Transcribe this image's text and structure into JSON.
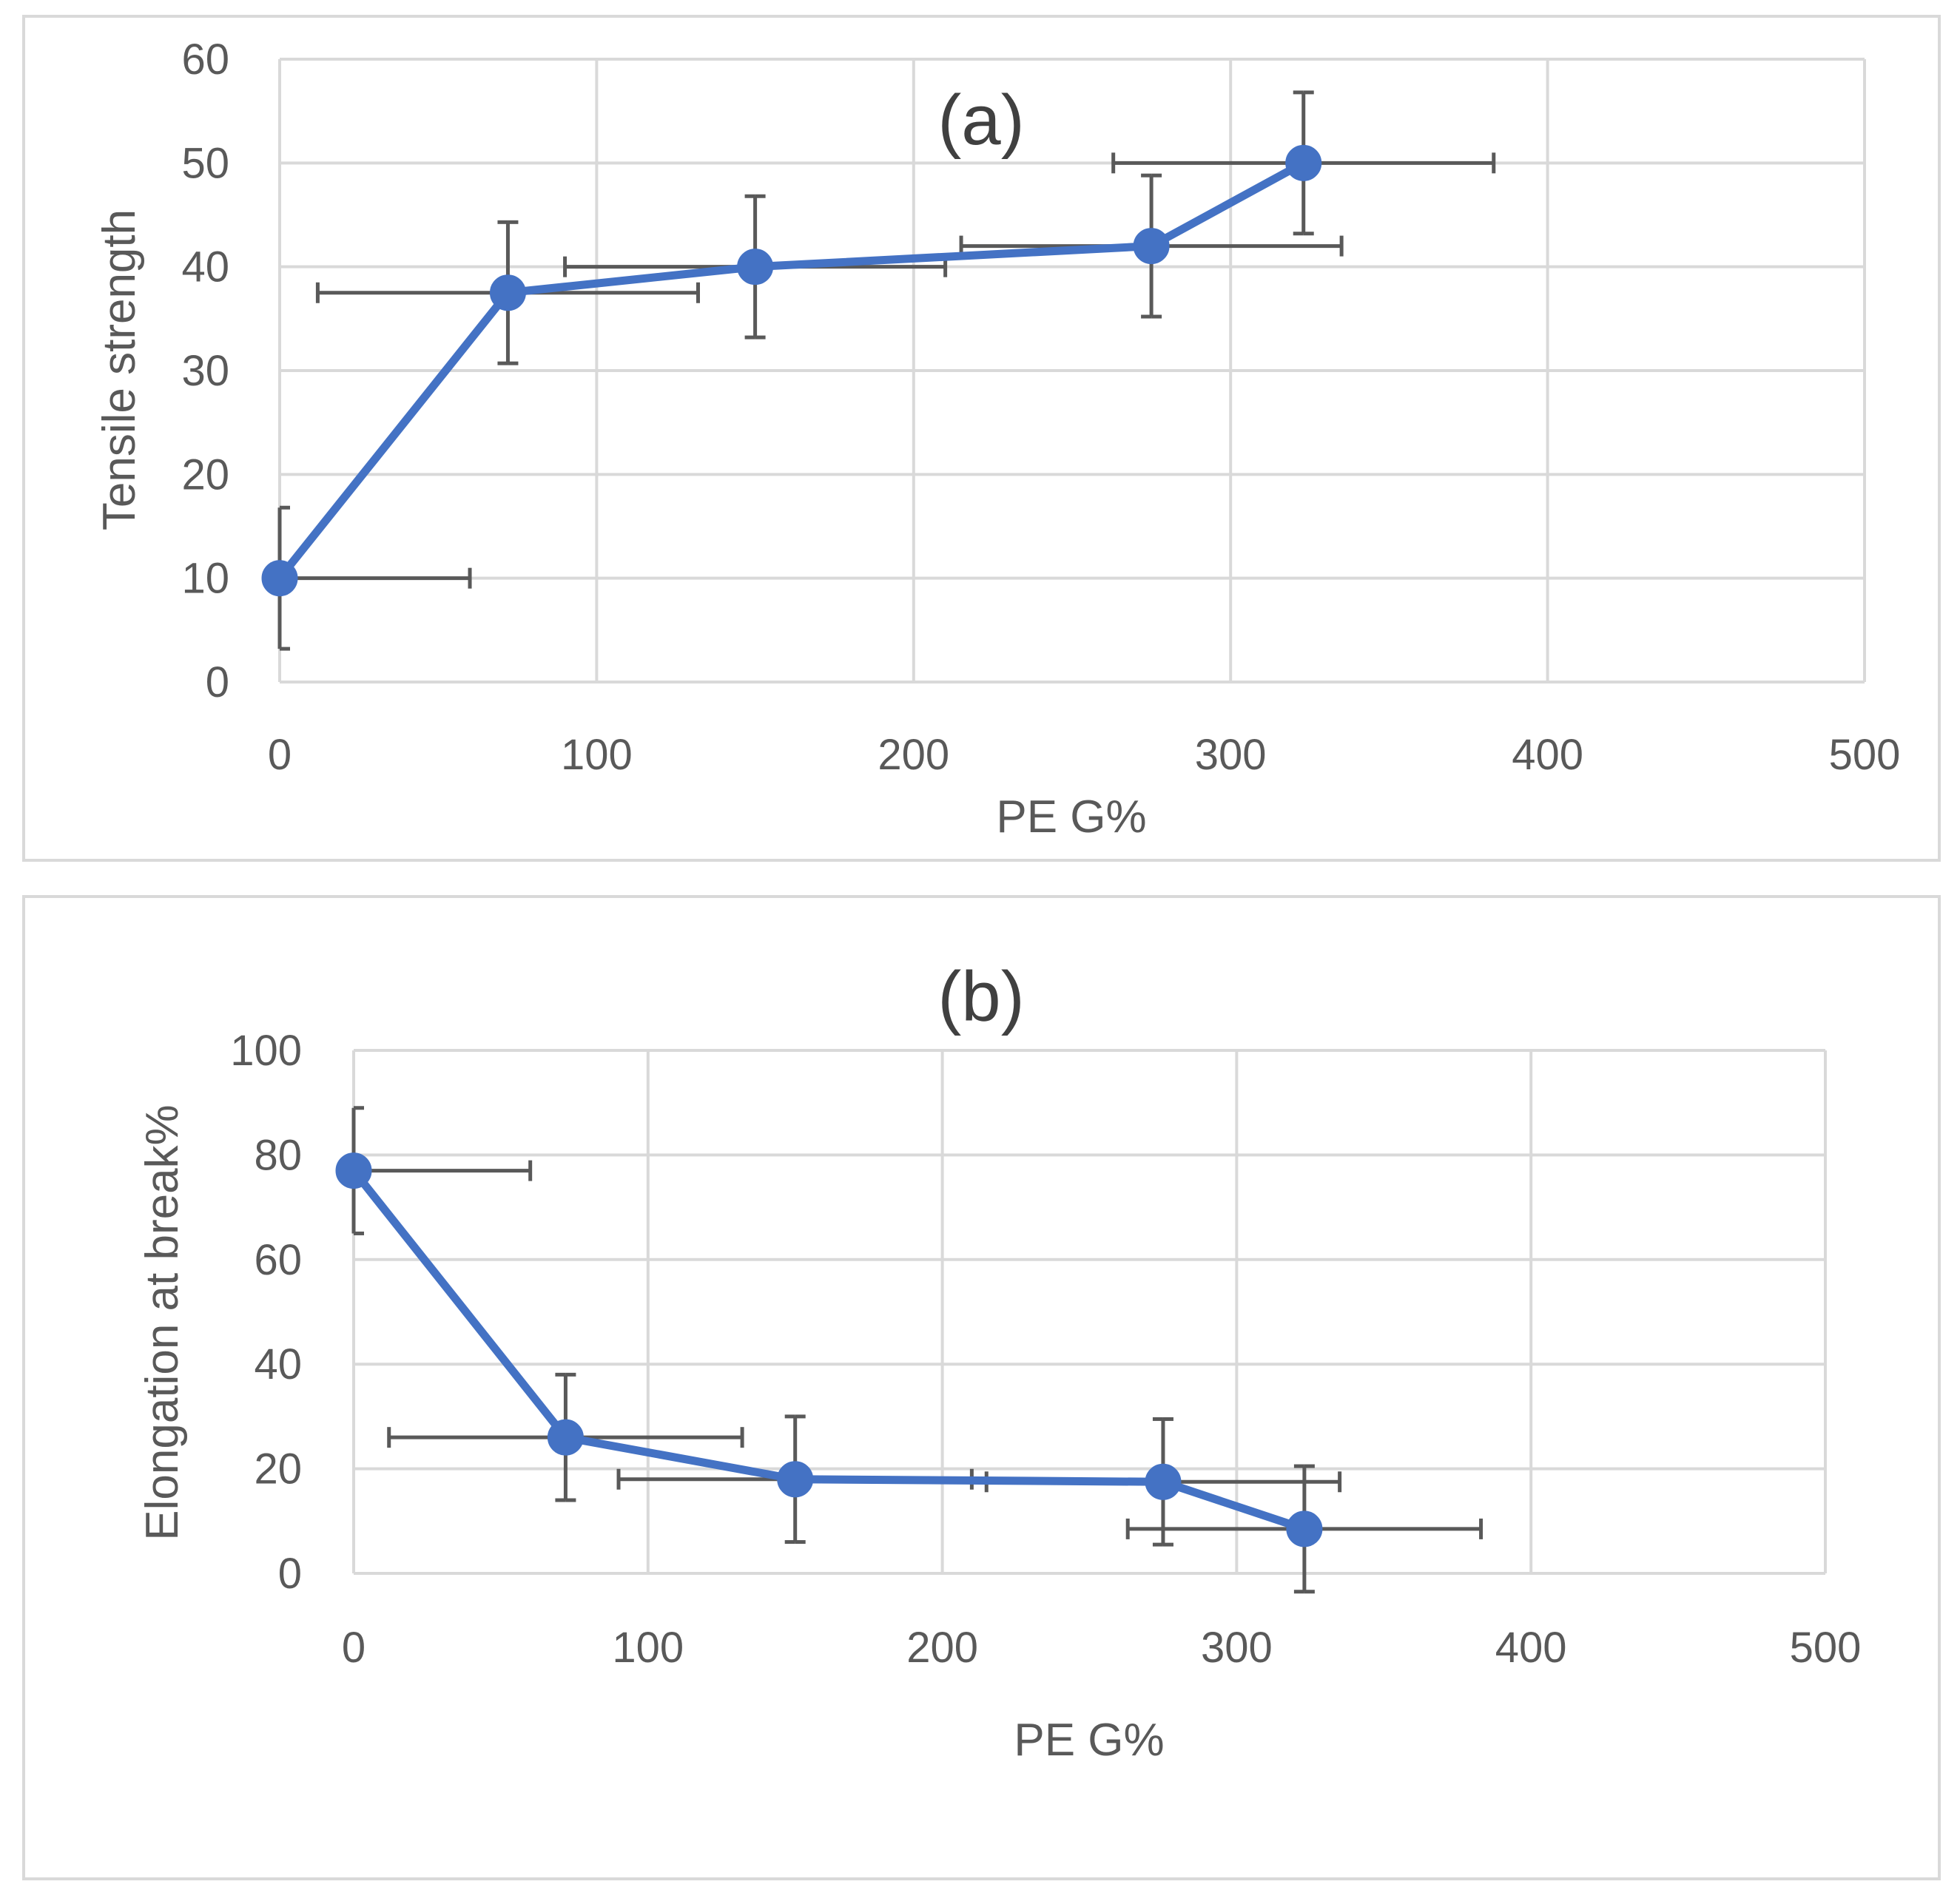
{
  "chart_data": [
    {
      "type": "line",
      "title": "(a)",
      "xlabel": "PE G%",
      "ylabel": "Tensile strength",
      "xlim": [
        0,
        500
      ],
      "ylim": [
        0,
        60
      ],
      "xticks": [
        0,
        100,
        200,
        300,
        400,
        500
      ],
      "yticks": [
        0,
        10,
        20,
        30,
        40,
        50,
        60
      ],
      "grid": true,
      "series": [
        {
          "name": "Tensile strength",
          "color": "#4472c4",
          "x": [
            0,
            72,
            150,
            275,
            323
          ],
          "y": [
            10,
            37.5,
            40,
            42,
            50
          ],
          "x_error": [
            60,
            60,
            60,
            60,
            60
          ],
          "y_error": [
            6.8,
            6.8,
            6.8,
            6.8,
            6.8
          ]
        }
      ]
    },
    {
      "type": "line",
      "title": "(b)",
      "xlabel": "PE G%",
      "ylabel": "Elongation at break%",
      "xlim": [
        0,
        500
      ],
      "ylim": [
        0,
        100
      ],
      "xticks": [
        0,
        100,
        200,
        300,
        400,
        500
      ],
      "yticks": [
        0,
        20,
        40,
        60,
        80,
        100
      ],
      "grid": true,
      "series": [
        {
          "name": "Elongation at break%",
          "color": "#4472c4",
          "x": [
            0,
            72,
            150,
            275,
            323
          ],
          "y": [
            77,
            26,
            18,
            17.5,
            8.5
          ],
          "x_error": [
            60,
            60,
            60,
            60,
            60
          ],
          "y_error": [
            12,
            12,
            12,
            12,
            12
          ]
        }
      ]
    }
  ]
}
